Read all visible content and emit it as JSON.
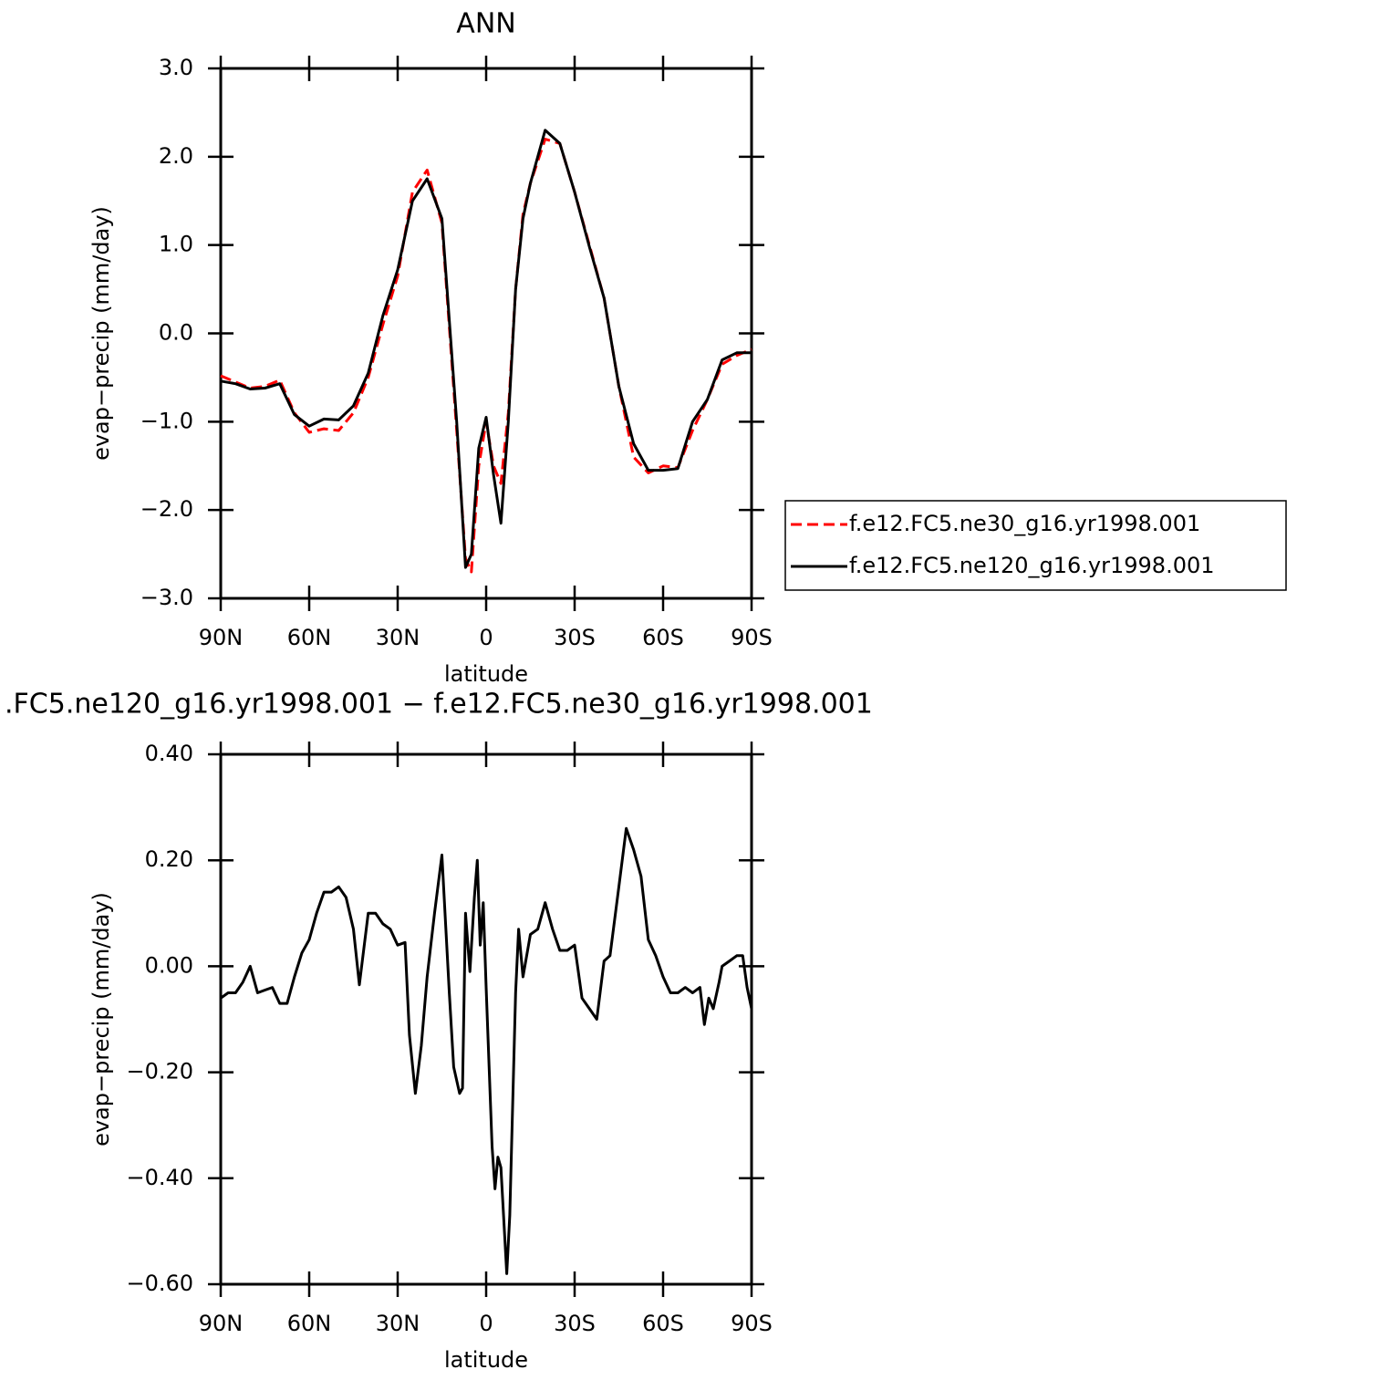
{
  "chart_data": [
    {
      "type": "line",
      "title": "ANN",
      "xlabel": "latitude",
      "ylabel": "evap−precip (mm/day)",
      "x": [
        90,
        85,
        80,
        75,
        70,
        65,
        60,
        55,
        50,
        45,
        40,
        35,
        30,
        25,
        20,
        15,
        10,
        7,
        5,
        2.5,
        0,
        -2.5,
        -5,
        -7.5,
        -10,
        -12.5,
        -15,
        -20,
        -25,
        -30,
        -35,
        -40,
        -45,
        -50,
        -55,
        -60,
        -65,
        -70,
        -75,
        -80,
        -85,
        -90
      ],
      "series": [
        {
          "name": "f.e12.FC5.ne30_g16.yr1998.001",
          "color": "#ff0000",
          "line_style": "dashed",
          "values": [
            -0.48,
            -0.55,
            -0.62,
            -0.6,
            -0.53,
            -0.9,
            -1.12,
            -1.08,
            -1.1,
            -0.9,
            -0.5,
            0.1,
            0.65,
            1.6,
            1.85,
            1.25,
            -1.1,
            -2.55,
            -2.7,
            -1.5,
            -1.0,
            -1.5,
            -1.7,
            -0.9,
            0.5,
            1.35,
            1.7,
            2.2,
            2.15,
            1.6,
            1.0,
            0.4,
            -0.6,
            -1.4,
            -1.58,
            -1.5,
            -1.52,
            -1.1,
            -0.75,
            -0.35,
            -0.25,
            -0.18
          ]
        },
        {
          "name": "f.e12.FC5.ne120_g16.yr1998.001",
          "color": "#000000",
          "line_style": "solid",
          "values": [
            -0.54,
            -0.57,
            -0.63,
            -0.62,
            -0.57,
            -0.92,
            -1.05,
            -0.97,
            -0.98,
            -0.82,
            -0.45,
            0.2,
            0.72,
            1.5,
            1.75,
            1.3,
            -1.0,
            -2.65,
            -2.5,
            -1.3,
            -0.95,
            -1.6,
            -2.15,
            -1.0,
            0.5,
            1.3,
            1.7,
            2.3,
            2.15,
            1.6,
            0.98,
            0.4,
            -0.6,
            -1.25,
            -1.55,
            -1.55,
            -1.53,
            -1.0,
            -0.75,
            -0.3,
            -0.22,
            -0.22
          ]
        }
      ],
      "xlim": [
        90,
        -90
      ],
      "xticks": [
        {
          "value": 90,
          "label": "90N"
        },
        {
          "value": 60,
          "label": "60N"
        },
        {
          "value": 30,
          "label": "30N"
        },
        0,
        {
          "value": -30,
          "label": "30S"
        },
        {
          "value": -60,
          "label": "60S"
        },
        {
          "value": -90,
          "label": "90S"
        }
      ],
      "ylim": [
        -3,
        3
      ],
      "yticks": [
        {
          "value": 3,
          "label": "3.0"
        },
        {
          "value": 2,
          "label": "2.0"
        },
        {
          "value": 1,
          "label": "1.0"
        },
        {
          "value": 0,
          "label": "0.0"
        },
        {
          "value": -1,
          "label": "−1.0"
        },
        {
          "value": -2,
          "label": "−2.0"
        },
        {
          "value": -3,
          "label": "−3.0"
        }
      ],
      "legend": "right"
    },
    {
      "type": "line",
      "title": ".FC5.ne120_g16.yr1998.001 − f.e12.FC5.ne30_g16.yr1998.001",
      "xlabel": "latitude",
      "ylabel": "evap−precip (mm/day)",
      "x": [
        90,
        87.5,
        85,
        82.5,
        80,
        77.5,
        75,
        72.5,
        70,
        67.5,
        65,
        62.5,
        60,
        57.5,
        55,
        52.5,
        50,
        47.5,
        45,
        43,
        40,
        37.5,
        35,
        32.5,
        30,
        27.5,
        26,
        24,
        22,
        20,
        17.5,
        15,
        12.5,
        11,
        9,
        8,
        7,
        5.5,
        4,
        3,
        2,
        1,
        0,
        -2,
        -3,
        -4,
        -5,
        -7,
        -8,
        -10,
        -11,
        -12.5,
        -15,
        -17.5,
        -20,
        -22.5,
        -25,
        -27.5,
        -30,
        -32.5,
        -35,
        -37.5,
        -40,
        -42,
        -45,
        -47.5,
        -50,
        -52.5,
        -55,
        -57.5,
        -60,
        -62.5,
        -65,
        -67.5,
        -70,
        -72.5,
        -74,
        -75.5,
        -77,
        -79,
        -80,
        -82.5,
        -85,
        -87,
        -88.5,
        -90
      ],
      "values": [
        -0.06,
        -0.05,
        -0.05,
        -0.03,
        0.0,
        -0.05,
        -0.045,
        -0.04,
        -0.07,
        -0.07,
        -0.02,
        0.025,
        0.05,
        0.1,
        0.14,
        0.14,
        0.15,
        0.13,
        0.07,
        -0.035,
        0.1,
        0.1,
        0.08,
        0.07,
        0.04,
        0.045,
        -0.13,
        -0.24,
        -0.15,
        -0.02,
        0.1,
        0.21,
        -0.05,
        -0.19,
        -0.24,
        -0.23,
        0.1,
        -0.01,
        0.13,
        0.2,
        0.04,
        0.12,
        -0.04,
        -0.34,
        -0.42,
        -0.36,
        -0.38,
        -0.58,
        -0.47,
        -0.05,
        0.07,
        -0.02,
        0.06,
        0.07,
        0.12,
        0.07,
        0.03,
        0.03,
        0.04,
        -0.06,
        -0.08,
        -0.1,
        0.01,
        0.02,
        0.15,
        0.26,
        0.22,
        0.17,
        0.05,
        0.02,
        -0.02,
        -0.05,
        -0.05,
        -0.04,
        -0.05,
        -0.04,
        -0.11,
        -0.06,
        -0.08,
        -0.03,
        0.0,
        0.01,
        0.02,
        0.02,
        -0.04,
        -0.08
      ],
      "color": "#000000",
      "line_style": "solid",
      "xlim": [
        90,
        -90
      ],
      "xticks": [
        {
          "value": 90,
          "label": "90N"
        },
        {
          "value": 60,
          "label": "60N"
        },
        {
          "value": 30,
          "label": "30N"
        },
        0,
        {
          "value": -30,
          "label": "30S"
        },
        {
          "value": -60,
          "label": "60S"
        },
        {
          "value": -90,
          "label": "90S"
        }
      ],
      "ylim": [
        -0.6,
        0.4
      ],
      "yticks": [
        {
          "value": 0.4,
          "label": "0.40"
        },
        {
          "value": 0.2,
          "label": "0.20"
        },
        {
          "value": 0,
          "label": "0.00"
        },
        {
          "value": -0.2,
          "label": "−0.20"
        },
        {
          "value": -0.4,
          "label": "−0.40"
        },
        {
          "value": -0.6,
          "label": "−0.60"
        }
      ]
    }
  ]
}
